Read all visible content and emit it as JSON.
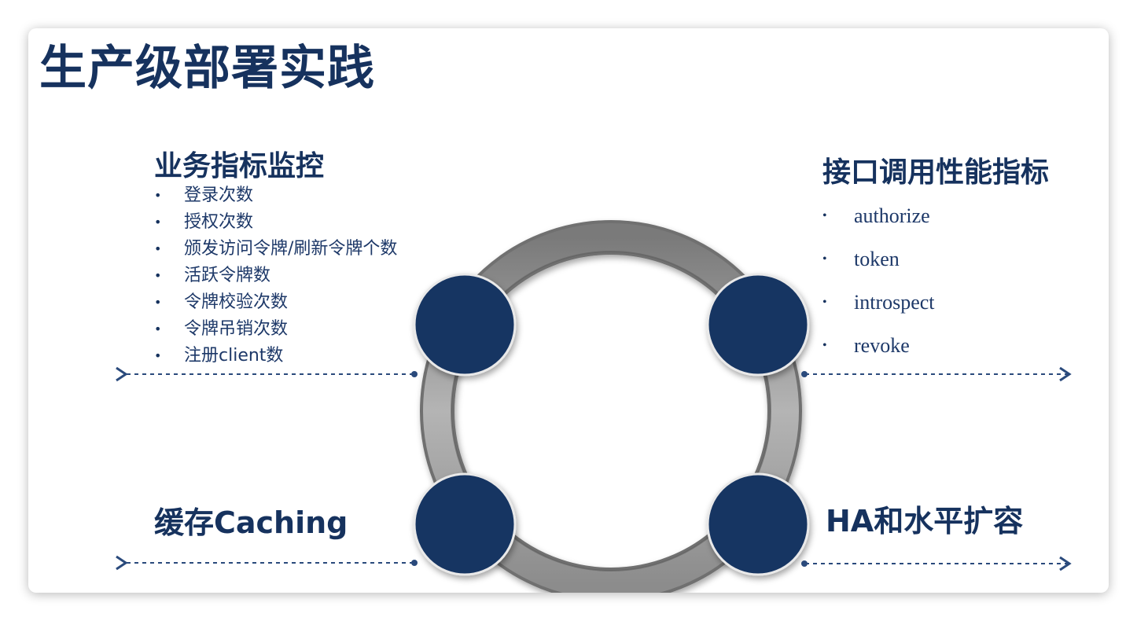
{
  "title": "生产级部署实践",
  "sections": {
    "top_left": {
      "heading": "业务指标监控",
      "items": [
        "登录次数",
        "授权次数",
        "颁发访问令牌/刷新令牌个数",
        "活跃令牌数",
        "令牌校验次数",
        "令牌吊销次数",
        "注册client数"
      ]
    },
    "top_right": {
      "heading": "接口调用性能指标",
      "items": [
        "authorize",
        "token",
        "introspect",
        "revoke"
      ]
    },
    "bottom_left": {
      "heading": "缓存Caching"
    },
    "bottom_right": {
      "heading": "HA和水平扩容"
    }
  },
  "bullet_glyph": "•",
  "colors": {
    "navy": "#16325e",
    "node": "#173462",
    "ring": "#8a8a8a",
    "arrow": "#2a4a7c"
  }
}
